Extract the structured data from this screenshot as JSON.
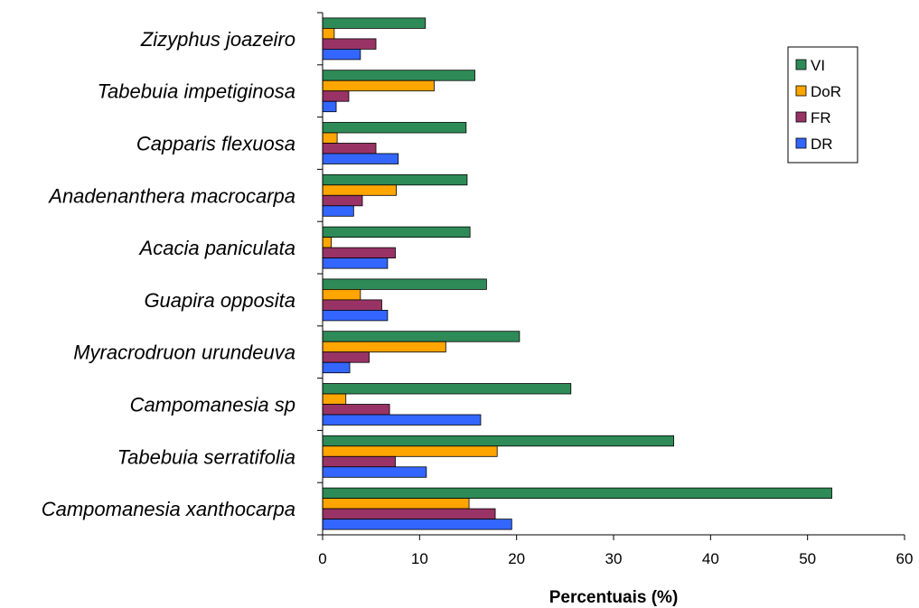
{
  "chart_data": {
    "type": "bar",
    "orientation": "horizontal",
    "title": "",
    "xlabel": "Percentuais (%)",
    "ylabel": "",
    "xlim": [
      0,
      60
    ],
    "xticks": [
      0,
      10,
      20,
      30,
      40,
      50,
      60
    ],
    "grid": false,
    "legend_position": "top-right",
    "categories": [
      "Zizyphus joazeiro",
      "Tabebuia impetiginosa",
      "Capparis flexuosa",
      "Anadenanthera macrocarpa",
      "Acacia paniculata",
      "Guapira opposita",
      "Myracrodruon urundeuva",
      "Campomanesia sp",
      "Tabebuia serratifolia",
      "Campomanesia xanthocarpa"
    ],
    "series": [
      {
        "name": "VI",
        "color": "#2e8b57",
        "values": [
          10.6,
          15.7,
          14.8,
          14.9,
          15.2,
          16.9,
          20.3,
          25.6,
          36.2,
          52.5
        ]
      },
      {
        "name": "DoR",
        "color": "#ffa500",
        "values": [
          1.2,
          11.5,
          1.5,
          7.6,
          0.9,
          3.9,
          12.7,
          2.4,
          18.0,
          15.1
        ]
      },
      {
        "name": "FR",
        "color": "#993366",
        "values": [
          5.5,
          2.7,
          5.5,
          4.1,
          7.5,
          6.1,
          4.8,
          6.9,
          7.5,
          17.8
        ]
      },
      {
        "name": "DR",
        "color": "#3366ff",
        "values": [
          3.9,
          1.4,
          7.8,
          3.2,
          6.7,
          6.7,
          2.8,
          16.3,
          10.7,
          19.5
        ]
      }
    ]
  }
}
